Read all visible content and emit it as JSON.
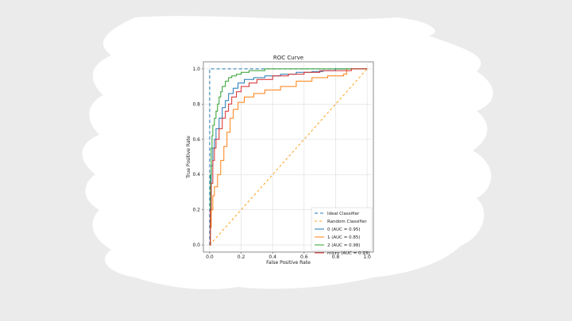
{
  "colors": {
    "page_background": "#ebebeb",
    "brush_background": "#ffffff",
    "grid": "#dddddd",
    "axis": "#444444",
    "ideal": "#1f77b4",
    "random": "#ff9f1c",
    "class0": "#1f77b4",
    "class1": "#ff7f0e",
    "class2": "#2ca02c",
    "micro": "#d62728"
  },
  "chart_data": {
    "type": "line",
    "title": "ROC Curve",
    "xlabel": "False Positive Rate",
    "ylabel": "True Positive Rate",
    "xlim": [
      -0.04,
      1.04
    ],
    "ylim": [
      -0.04,
      1.04
    ],
    "xticks": [
      "0.0",
      "0.2",
      "0.4",
      "0.6",
      "0.8",
      "1.0"
    ],
    "yticks": [
      "0.0",
      "0.2",
      "0.4",
      "0.6",
      "0.8",
      "1.0"
    ],
    "grid": true,
    "legend_position": "bottom-right",
    "series": [
      {
        "name": "Ideal Classifier",
        "color_key": "ideal",
        "dash": "4,3",
        "x": [
          0,
          0,
          1
        ],
        "y": [
          0,
          1,
          1
        ]
      },
      {
        "name": "Random Classifier",
        "color_key": "random",
        "dash": "3,3",
        "x": [
          0,
          1
        ],
        "y": [
          0,
          1
        ]
      },
      {
        "name": "0 (AUC = 0.95)",
        "color_key": "class0",
        "dash": "",
        "x": [
          0,
          0.005,
          0.01,
          0.02,
          0.03,
          0.04,
          0.06,
          0.08,
          0.1,
          0.12,
          0.15,
          0.18,
          0.22,
          0.28,
          0.35,
          0.45,
          0.55,
          0.65,
          0.72,
          0.8,
          0.9,
          1.0
        ],
        "y": [
          0,
          0.3,
          0.45,
          0.55,
          0.6,
          0.66,
          0.72,
          0.78,
          0.82,
          0.86,
          0.89,
          0.92,
          0.94,
          0.95,
          0.96,
          0.97,
          0.98,
          0.985,
          0.99,
          1.0,
          1.0,
          1.0
        ]
      },
      {
        "name": "1 (AUC = 0.85)",
        "color_key": "class1",
        "dash": "",
        "x": [
          0,
          0.005,
          0.01,
          0.02,
          0.03,
          0.05,
          0.07,
          0.09,
          0.11,
          0.13,
          0.15,
          0.18,
          0.22,
          0.28,
          0.35,
          0.45,
          0.55,
          0.65,
          0.75,
          0.85,
          0.87,
          1.0
        ],
        "y": [
          0,
          0.1,
          0.2,
          0.28,
          0.33,
          0.4,
          0.48,
          0.56,
          0.64,
          0.72,
          0.77,
          0.81,
          0.84,
          0.86,
          0.88,
          0.9,
          0.93,
          0.95,
          0.96,
          0.97,
          1.0,
          1.0
        ]
      },
      {
        "name": "2 (AUC = 0.98)",
        "color_key": "class2",
        "dash": "",
        "x": [
          0,
          0.005,
          0.01,
          0.015,
          0.02,
          0.03,
          0.04,
          0.05,
          0.06,
          0.07,
          0.08,
          0.1,
          0.12,
          0.14,
          0.17,
          0.2,
          0.25,
          0.35,
          0.5,
          0.7,
          1.0
        ],
        "y": [
          0,
          0.4,
          0.55,
          0.62,
          0.68,
          0.72,
          0.76,
          0.8,
          0.84,
          0.87,
          0.9,
          0.93,
          0.95,
          0.96,
          0.97,
          0.98,
          0.99,
          1.0,
          1.0,
          1.0,
          1.0
        ]
      },
      {
        "name": "micro (AUC = 0.93)",
        "color_key": "micro",
        "dash": "",
        "x": [
          0,
          0.005,
          0.01,
          0.02,
          0.03,
          0.04,
          0.06,
          0.08,
          0.1,
          0.12,
          0.14,
          0.17,
          0.2,
          0.25,
          0.3,
          0.4,
          0.5,
          0.6,
          0.7,
          0.8,
          0.9,
          1.0
        ],
        "y": [
          0,
          0.2,
          0.35,
          0.48,
          0.55,
          0.6,
          0.66,
          0.72,
          0.76,
          0.8,
          0.84,
          0.87,
          0.9,
          0.92,
          0.94,
          0.96,
          0.97,
          0.98,
          0.99,
          0.99,
          1.0,
          1.0
        ]
      }
    ]
  }
}
